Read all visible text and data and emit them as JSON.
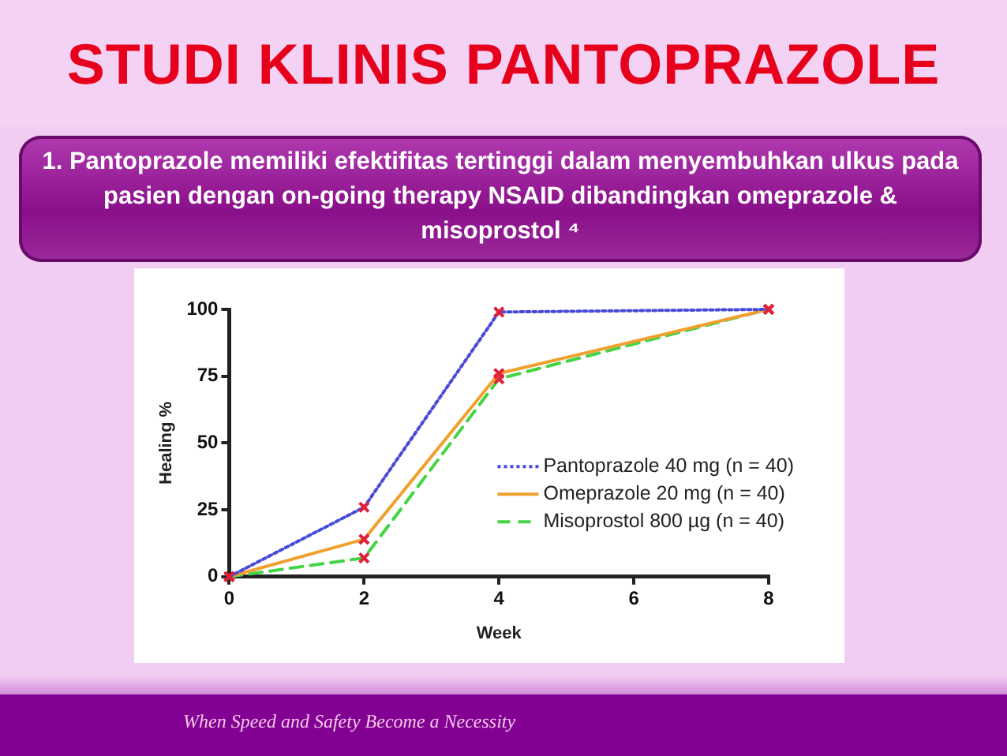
{
  "chart_data": {
    "type": "line",
    "title": "STUDI KLINIS PANTOPRAZOLE",
    "subtitle": "1. Pantoprazole  memiliki efektifitas tertinggi dalam menyembuhkan ulkus pada pasien dengan on-going therapy NSAID dibandingkan omeprazole & misoprostol ⁴",
    "xlabel": "Week",
    "ylabel": "Healing %",
    "x": [
      0,
      2,
      4,
      8
    ],
    "series": [
      {
        "name": "Pantoprazole 40 mg (n = 40)",
        "color": "#4a4ad8",
        "values": [
          0,
          26,
          99,
          100
        ],
        "line_style": "dotted"
      },
      {
        "name": "Omeprazole 20 mg (n = 40)",
        "color": "#f0a030",
        "values": [
          0,
          14,
          76,
          100
        ],
        "line_style": "solid"
      },
      {
        "name": "Misoprostol 800 µg (n = 40)",
        "color": "#44d444",
        "values": [
          0,
          7,
          74,
          100
        ],
        "line_style": "dashed"
      }
    ],
    "xlim": [
      0,
      8
    ],
    "xticks": [
      0,
      2,
      4,
      6,
      8
    ],
    "ylim": [
      0,
      100
    ],
    "yticks": [
      0,
      25,
      50,
      75,
      100
    ],
    "grid": false,
    "legend": "bottom right",
    "marker": "cross",
    "annotations": [
      "When Speed and Safety Become a Necessity"
    ]
  }
}
